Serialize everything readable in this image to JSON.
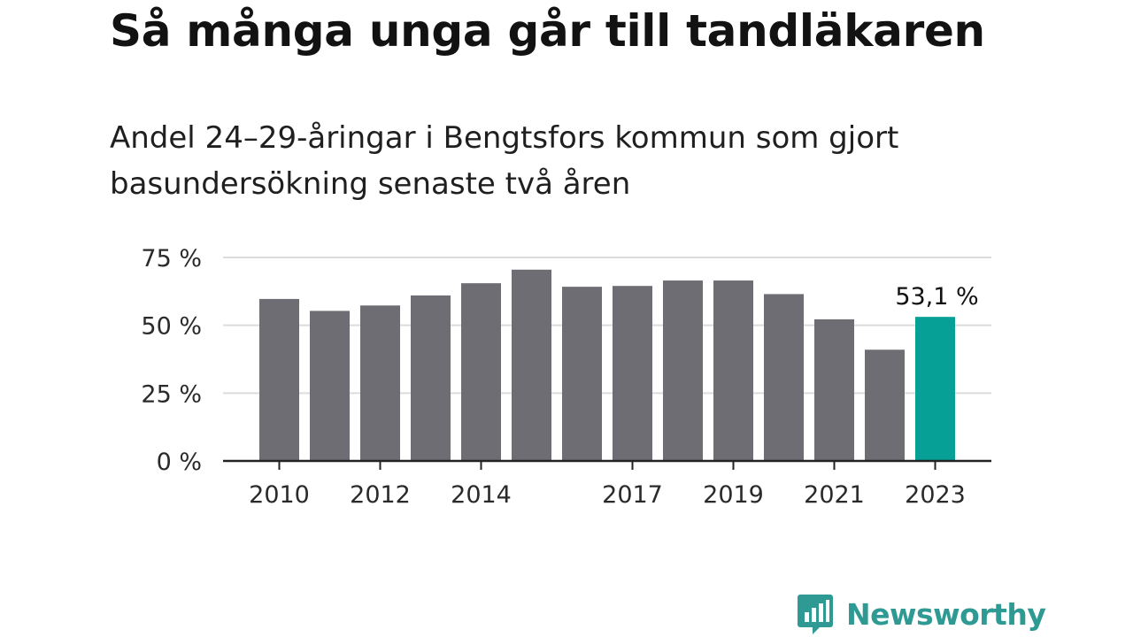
{
  "title": "Så många unga går till tandläkaren",
  "subtitle_lines": [
    "Andel 24–29-åringar i Bengtsfors kommun som gjort",
    "basundersökning senaste två åren"
  ],
  "brand": {
    "name": "Newsworthy",
    "icon": "bar-chart-speech-bubble-icon",
    "color": "#2e9a93"
  },
  "colors": {
    "bar": "#6e6d74",
    "highlight": "#06a097",
    "grid": "#dcdcdc",
    "axis": "#222222"
  },
  "chart_data": {
    "type": "bar",
    "categories": [
      "2010",
      "2011",
      "2012",
      "2013",
      "2014",
      "2015",
      "2016",
      "2017",
      "2018",
      "2019",
      "2020",
      "2021",
      "2022",
      "2023"
    ],
    "values": [
      59.7,
      55.3,
      57.3,
      61.0,
      65.5,
      70.5,
      64.2,
      64.5,
      66.5,
      66.5,
      61.5,
      52.2,
      41.0,
      53.1
    ],
    "tick_labels_x": [
      "2010",
      "",
      "2012",
      "",
      "2014",
      "",
      "",
      "2017",
      "",
      "2019",
      "",
      "2021",
      "",
      "2023"
    ],
    "y_ticks": [
      0,
      25,
      50,
      75
    ],
    "y_tick_labels": [
      "0 %",
      "25 %",
      "50 %",
      "75 %"
    ],
    "ylim": [
      0,
      75
    ],
    "highlight_index": 13,
    "data_labels": [
      {
        "index": 13,
        "text": "53,1 %"
      }
    ],
    "grid": true,
    "legend": false
  }
}
